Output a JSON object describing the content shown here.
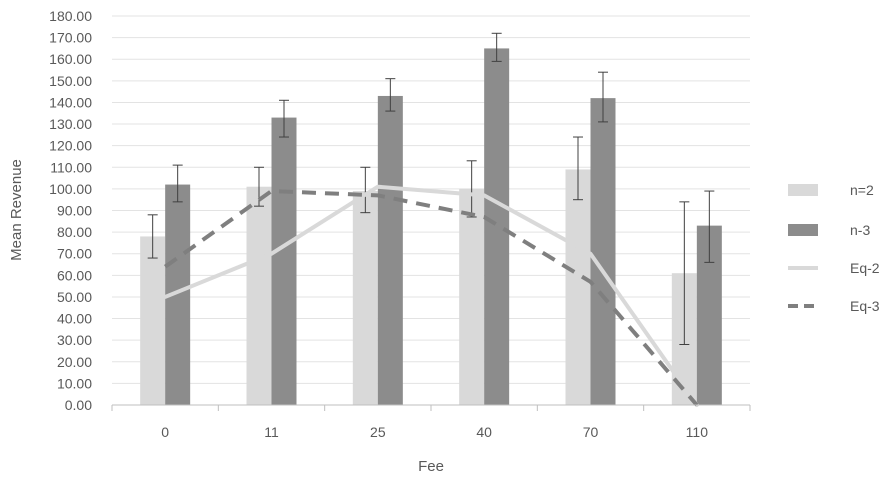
{
  "chart_data": {
    "type": "bar",
    "title": "",
    "xlabel": "Fee",
    "ylabel": "Mean Revenue",
    "ylim": [
      0,
      180
    ],
    "ytick_step": 10,
    "ytick_labels": [
      "0.00",
      "10.00",
      "20.00",
      "30.00",
      "40.00",
      "50.00",
      "60.00",
      "70.00",
      "80.00",
      "90.00",
      "100.00",
      "110.00",
      "120.00",
      "130.00",
      "140.00",
      "150.00",
      "160.00",
      "170.00",
      "180.00"
    ],
    "categories": [
      "0",
      "11",
      "25",
      "40",
      "70",
      "110"
    ],
    "grid": true,
    "legend_position": "right",
    "series": [
      {
        "name": "n=2",
        "kind": "bar",
        "color": "#d9d9d9",
        "values": [
          78,
          101,
          99,
          100,
          109,
          61
        ],
        "error_low": [
          68,
          92,
          89,
          87,
          95,
          28
        ],
        "error_high": [
          88,
          110,
          110,
          113,
          124,
          94
        ]
      },
      {
        "name": "n-3",
        "kind": "bar",
        "color": "#8c8c8c",
        "values": [
          102,
          133,
          143,
          165,
          142,
          83
        ],
        "error_low": [
          94,
          124,
          136,
          159,
          131,
          66
        ],
        "error_high": [
          111,
          141,
          151,
          172,
          154,
          99
        ]
      },
      {
        "name": "Eq-2",
        "kind": "line",
        "color": "#d9d9d9",
        "dash": "solid",
        "values": [
          50,
          70,
          101,
          97,
          70,
          0
        ]
      },
      {
        "name": "Eq-3",
        "kind": "line",
        "color": "#7f7f7f",
        "dash": "dashed",
        "values": [
          64,
          99,
          97,
          87,
          57,
          0
        ]
      }
    ]
  }
}
